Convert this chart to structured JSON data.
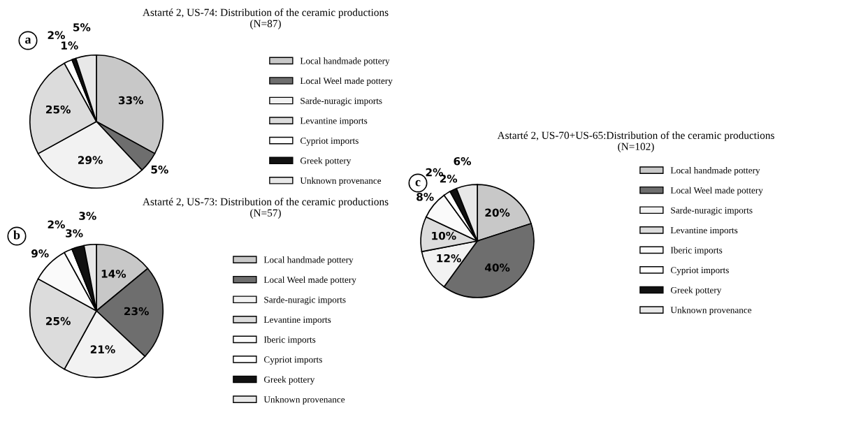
{
  "chart_data": [
    {
      "type": "pie",
      "title": "Astarté 2, US-74: Distribution of the ceramic productions\n(N=87)",
      "annotations": [
        "a"
      ],
      "legend": "right",
      "categories": [
        "Local handmade pottery",
        "Local Weel made pottery",
        "Sarde-nuragic imports",
        "Levantine imports",
        "Cypriot imports",
        "Greek pottery",
        "Unknown provenance"
      ],
      "values": [
        33,
        5,
        29,
        25,
        2,
        1,
        5
      ],
      "value_labels": [
        "33%",
        "5%",
        "29%",
        "25%",
        "2%",
        "1%",
        "5%"
      ],
      "colors": [
        "#c8c8c8",
        "#6e6e6e",
        "#f2f2f2",
        "#dcdcdc",
        "#ffffff",
        "#111111",
        "#e8e8e8"
      ]
    },
    {
      "type": "pie",
      "title": "Astarté 2, US-70+US-65:Distribution of the ceramic productions\n(N=102)",
      "annotations": [
        "c"
      ],
      "legend": "right",
      "categories": [
        "Local handmade pottery",
        "Local Weel made pottery",
        "Sarde-nuragic imports",
        "Levantine imports",
        "Iberic imports",
        "Cypriot imports",
        "Greek pottery",
        "Unknown provenance"
      ],
      "values": [
        20,
        40,
        12,
        10,
        8,
        2,
        2,
        6
      ],
      "value_labels": [
        "20%",
        "40%",
        "12%",
        "10%",
        "8%",
        "2%",
        "2%",
        "6%"
      ],
      "colors": [
        "#c8c8c8",
        "#6e6e6e",
        "#f2f2f2",
        "#dcdcdc",
        "#fafafa",
        "#ffffff",
        "#111111",
        "#e8e8e8"
      ]
    },
    {
      "type": "pie",
      "title": "Astarté 2, US-73: Distribution of the ceramic productions\n(N=57)",
      "annotations": [
        "b"
      ],
      "legend": "right",
      "categories": [
        "Local handmade pottery",
        "Local Weel made pottery",
        "Sarde-nuragic imports",
        "Levantine imports",
        "Iberic imports",
        "Cypriot imports",
        "Greek pottery",
        "Unknown provenance"
      ],
      "values": [
        14,
        23,
        21,
        25,
        9,
        2,
        3,
        3
      ],
      "value_labels": [
        "14%",
        "23%",
        "21%",
        "25%",
        "9%",
        "2%",
        "3%",
        "3%"
      ],
      "colors": [
        "#c8c8c8",
        "#6e6e6e",
        "#f2f2f2",
        "#dcdcdc",
        "#fafafa",
        "#ffffff",
        "#111111",
        "#e8e8e8"
      ]
    }
  ]
}
